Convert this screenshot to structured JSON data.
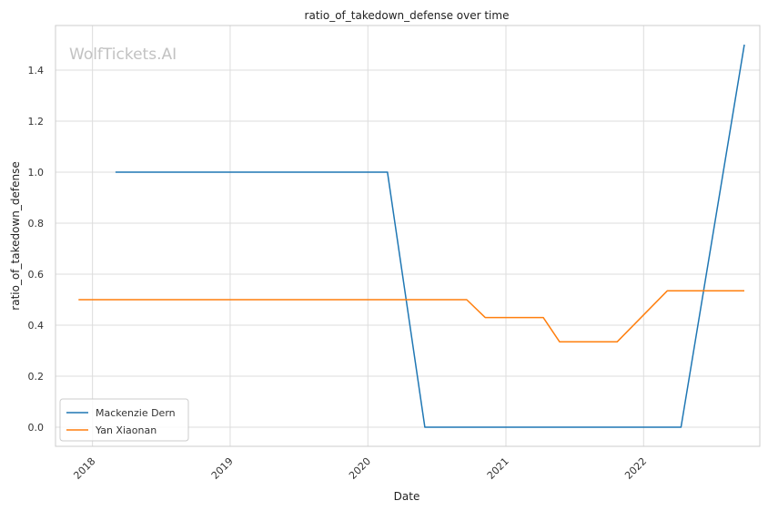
{
  "chart_data": {
    "type": "line",
    "title": "ratio_of_takedown_defense over time",
    "xlabel": "Date",
    "ylabel": "ratio_of_takedown_defense",
    "xlim": [
      "2017-09-25",
      "2022-11-05"
    ],
    "ylim": [
      -0.075,
      1.575
    ],
    "x_ticks": [
      "2018",
      "2019",
      "2020",
      "2021",
      "2022"
    ],
    "x_tick_dates": [
      "2018-01-01",
      "2019-01-01",
      "2020-01-01",
      "2021-01-01",
      "2022-01-01"
    ],
    "y_ticks": [
      "0.0",
      "0.2",
      "0.4",
      "0.6",
      "0.8",
      "1.0",
      "1.2",
      "1.4"
    ],
    "y_tick_values": [
      0.0,
      0.2,
      0.4,
      0.6,
      0.8,
      1.0,
      1.2,
      1.4
    ],
    "grid": true,
    "legend_position": "lower-left",
    "watermark": "WolfTickets.AI",
    "series": [
      {
        "name": "Mackenzie Dern",
        "color": "#1f77b4",
        "points": [
          {
            "x": "2018-03-03",
            "y": 1.0
          },
          {
            "x": "2020-02-22",
            "y": 1.0
          },
          {
            "x": "2020-05-31",
            "y": 0.0
          },
          {
            "x": "2022-04-10",
            "y": 0.0
          },
          {
            "x": "2022-09-25",
            "y": 1.5
          }
        ]
      },
      {
        "name": "Yan Xiaonan",
        "color": "#ff7f0e",
        "points": [
          {
            "x": "2017-11-25",
            "y": 0.5
          },
          {
            "x": "2020-09-19",
            "y": 0.5
          },
          {
            "x": "2020-11-07",
            "y": 0.43
          },
          {
            "x": "2021-04-10",
            "y": 0.43
          },
          {
            "x": "2021-05-23",
            "y": 0.335
          },
          {
            "x": "2021-10-23",
            "y": 0.335
          },
          {
            "x": "2022-03-05",
            "y": 0.535
          },
          {
            "x": "2022-09-25",
            "y": 0.535
          }
        ]
      }
    ]
  }
}
